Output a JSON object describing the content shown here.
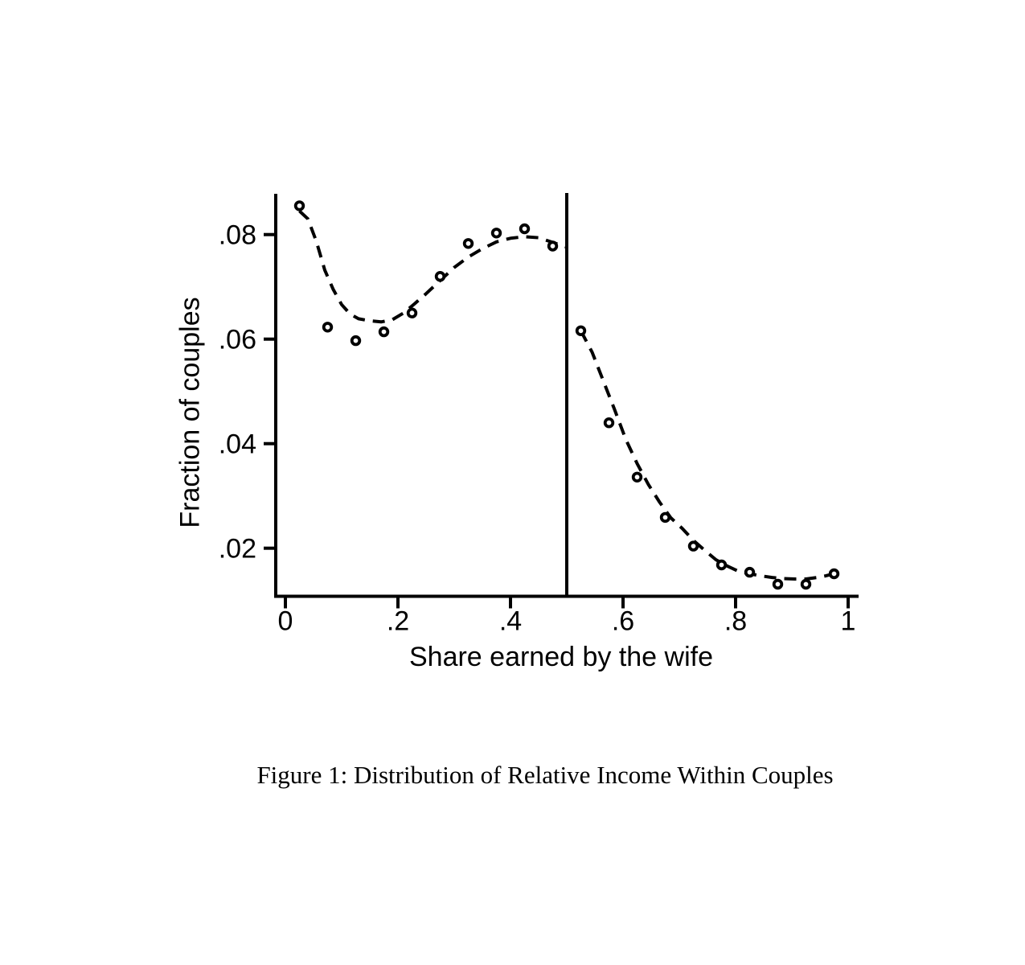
{
  "page": {
    "background": "#ffffff"
  },
  "chart_data": {
    "type": "scatter",
    "title": "Figure 1: Distribution of Relative Income Within Couples",
    "xlabel": "Share earned by the wife",
    "ylabel": "Fraction of couples",
    "x_ticks": {
      "values": [
        0,
        0.2,
        0.4,
        0.6,
        0.8,
        1
      ],
      "labels": [
        "0",
        ".2",
        ".4",
        ".6",
        ".8",
        "1"
      ]
    },
    "y_ticks": {
      "values": [
        0.02,
        0.04,
        0.06,
        0.08
      ],
      "labels": [
        ".02",
        ".04",
        ".06",
        ".08"
      ]
    },
    "xlim": [
      -0.017,
      1.019
    ],
    "ylim": [
      0.0108,
      0.0878
    ],
    "grid": false,
    "legend_position": "none",
    "vertical_line_x": 0.5,
    "marker": "hollow-circle",
    "line_style": "dashed",
    "colors": {
      "foreground": "#000000",
      "background": "#ffffff"
    },
    "series": [
      {
        "name": "binned scatter, wife share below 0.5",
        "type": "scatter",
        "points": [
          [
            0.025,
            0.0855
          ],
          [
            0.075,
            0.0623
          ],
          [
            0.125,
            0.0597
          ],
          [
            0.175,
            0.0614
          ],
          [
            0.225,
            0.065
          ],
          [
            0.275,
            0.072
          ],
          [
            0.325,
            0.0783
          ],
          [
            0.375,
            0.0803
          ],
          [
            0.425,
            0.0811
          ],
          [
            0.475,
            0.0778
          ]
        ]
      },
      {
        "name": "binned scatter, wife share above 0.5",
        "type": "scatter",
        "points": [
          [
            0.525,
            0.0616
          ],
          [
            0.575,
            0.044
          ],
          [
            0.625,
            0.0336
          ],
          [
            0.675,
            0.0259
          ],
          [
            0.725,
            0.0204
          ],
          [
            0.775,
            0.0168
          ],
          [
            0.825,
            0.0154
          ],
          [
            0.875,
            0.0131
          ],
          [
            0.925,
            0.0131
          ],
          [
            0.975,
            0.0151
          ]
        ]
      },
      {
        "name": "smoothed fit, left of 0.5",
        "type": "line-dashed",
        "points": [
          [
            0.025,
            0.0845
          ],
          [
            0.04,
            0.083
          ],
          [
            0.055,
            0.0787
          ],
          [
            0.07,
            0.0732
          ],
          [
            0.085,
            0.0695
          ],
          [
            0.1,
            0.0666
          ],
          [
            0.115,
            0.0648
          ],
          [
            0.13,
            0.0639
          ],
          [
            0.15,
            0.0635
          ],
          [
            0.17,
            0.0633
          ],
          [
            0.19,
            0.0637
          ],
          [
            0.21,
            0.065
          ],
          [
            0.23,
            0.0668
          ],
          [
            0.25,
            0.0687
          ],
          [
            0.275,
            0.0712
          ],
          [
            0.3,
            0.0737
          ],
          [
            0.325,
            0.0757
          ],
          [
            0.35,
            0.0773
          ],
          [
            0.375,
            0.0786
          ],
          [
            0.4,
            0.0793
          ],
          [
            0.425,
            0.0796
          ],
          [
            0.45,
            0.0794
          ],
          [
            0.475,
            0.0785
          ],
          [
            0.5,
            0.0776
          ]
        ]
      },
      {
        "name": "smoothed fit, right of 0.5",
        "type": "line-dashed",
        "points": [
          [
            0.525,
            0.0616
          ],
          [
            0.545,
            0.0575
          ],
          [
            0.565,
            0.052
          ],
          [
            0.585,
            0.0465
          ],
          [
            0.605,
            0.0408
          ],
          [
            0.625,
            0.0362
          ],
          [
            0.645,
            0.0322
          ],
          [
            0.665,
            0.0288
          ],
          [
            0.685,
            0.0258
          ],
          [
            0.705,
            0.0238
          ],
          [
            0.725,
            0.0215
          ],
          [
            0.745,
            0.0196
          ],
          [
            0.765,
            0.0178
          ],
          [
            0.785,
            0.0166
          ],
          [
            0.805,
            0.0156
          ],
          [
            0.825,
            0.0151
          ],
          [
            0.845,
            0.0147
          ],
          [
            0.865,
            0.0144
          ],
          [
            0.885,
            0.0142
          ],
          [
            0.905,
            0.0141
          ],
          [
            0.925,
            0.0141
          ],
          [
            0.945,
            0.0144
          ],
          [
            0.96,
            0.0147
          ],
          [
            0.975,
            0.0151
          ]
        ]
      }
    ]
  }
}
